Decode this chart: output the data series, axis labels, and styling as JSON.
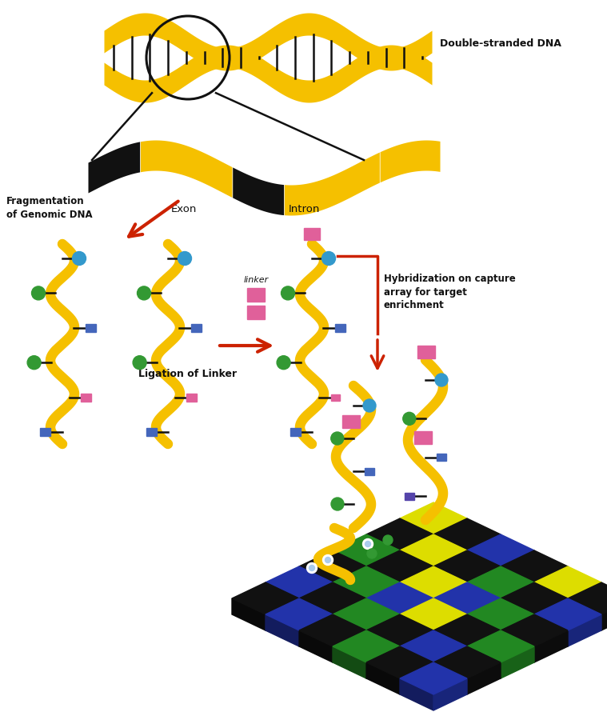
{
  "bg_color": "#ffffff",
  "gold_color": "#F5C000",
  "black_color": "#111111",
  "red_color": "#CC2200",
  "pink_color": "#E0609A",
  "blue_color": "#4466BB",
  "green_color": "#339933",
  "purple_color": "#5544AA",
  "cyan_color": "#3399CC",
  "label_dna": "Double-stranded DNA",
  "label_exon": "Exon",
  "label_intron": "Intron",
  "label_frag": "Fragmentation\nof Genomic DNA",
  "label_ligation": "Ligation of Linker",
  "label_linker": "linker",
  "label_hybridization": "Hybridization on capture\narray for target\nenrichment",
  "figw": 7.59,
  "figh": 9.1
}
